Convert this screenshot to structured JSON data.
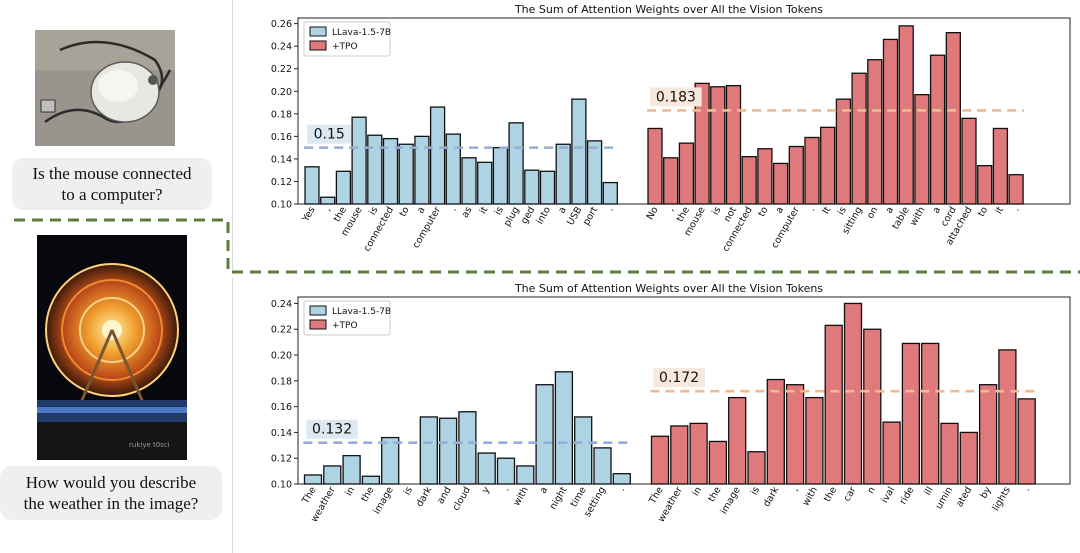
{
  "colors": {
    "baseline": "#aed3e3",
    "tpo": "#e0797c",
    "baseline_line": "#96add6",
    "tpo_line": "#edbb92",
    "badge_blue": "#dde8f3",
    "badge_orange": "#f9e8dc",
    "dashed_frame": "#5e7b3c"
  },
  "questions": {
    "top": [
      "Is the mouse connected",
      "to a computer?"
    ],
    "bottom": [
      "How would you describe",
      "the weather in the image?"
    ]
  },
  "images": {
    "bottom_caption": "rukiye t0sci"
  },
  "chart_data": [
    {
      "type": "bar",
      "title": "The Sum of Attention Weights over All the Vision Tokens",
      "legend": [
        "LLava-1.5-7B",
        "+TPO"
      ],
      "legend_position": "upper-left",
      "ylim": [
        0.1,
        0.265
      ],
      "yticks": [
        0.1,
        0.12,
        0.14,
        0.16,
        0.18,
        0.2,
        0.22,
        0.24,
        0.26
      ],
      "series": [
        {
          "name": "LLava-1.5-7B",
          "categories": [
            "Yes",
            ",",
            "the",
            "mouse",
            "is",
            "connected",
            "to",
            "a",
            "computer",
            ".",
            "as",
            "it",
            "is",
            "plug",
            "ged",
            "into",
            "a",
            "USB",
            "port",
            "."
          ],
          "values": [
            0.133,
            0.106,
            0.129,
            0.177,
            0.161,
            0.158,
            0.153,
            0.16,
            0.186,
            0.162,
            0.141,
            0.137,
            0.15,
            0.172,
            0.13,
            0.129,
            0.153,
            0.193,
            0.156,
            0.119
          ],
          "mean": 0.15,
          "mean_label": "0.15"
        },
        {
          "name": "+TPO",
          "categories": [
            "No",
            ",",
            "the",
            "mouse",
            "is",
            "not",
            "connected",
            "to",
            "a",
            "computer",
            ".",
            "It",
            "is",
            "sitting",
            "on",
            "a",
            "table",
            "with",
            "a",
            "cord",
            "attached",
            "to",
            "it",
            "."
          ],
          "values": [
            0.167,
            0.141,
            0.154,
            0.207,
            0.204,
            0.205,
            0.142,
            0.149,
            0.136,
            0.151,
            0.159,
            0.168,
            0.193,
            0.216,
            0.228,
            0.246,
            0.258,
            0.197,
            0.232,
            0.252,
            0.176,
            0.134,
            0.167,
            0.126
          ],
          "mean": 0.183,
          "mean_label": "0.183"
        }
      ]
    },
    {
      "type": "bar",
      "title": "The Sum of Attention Weights over All the Vision Tokens",
      "legend": [
        "LLava-1.5-7B",
        "+TPO"
      ],
      "legend_position": "upper-left",
      "ylim": [
        0.1,
        0.245
      ],
      "yticks": [
        0.1,
        0.12,
        0.14,
        0.16,
        0.18,
        0.2,
        0.22,
        0.24
      ],
      "series": [
        {
          "name": "LLava-1.5-7B",
          "categories": [
            "The",
            "weather",
            "in",
            "the",
            "image",
            "is",
            "dark",
            "and",
            "cloud",
            "y",
            ".",
            "with",
            "a",
            "night",
            "time",
            "setting",
            "."
          ],
          "values": [
            0.107,
            0.114,
            0.122,
            0.106,
            0.136,
            0.1,
            0.152,
            0.151,
            0.156,
            0.124,
            0.12,
            0.114,
            0.177,
            0.187,
            0.152,
            0.128,
            0.108
          ],
          "mean": 0.132,
          "mean_label": "0.132"
        },
        {
          "name": "+TPO",
          "categories": [
            "The",
            "weather",
            "in",
            "the",
            "image",
            "is",
            "dark",
            ",",
            "with",
            "the",
            "car",
            "n",
            "ival",
            "ride",
            "ill",
            "umin",
            "ated",
            "by",
            "lights",
            "."
          ],
          "values": [
            0.137,
            0.145,
            0.147,
            0.133,
            0.167,
            0.125,
            0.181,
            0.177,
            0.167,
            0.223,
            0.24,
            0.22,
            0.148,
            0.209,
            0.209,
            0.147,
            0.14,
            0.177,
            0.204,
            0.166
          ],
          "mean": 0.172,
          "mean_label": "0.172"
        }
      ]
    }
  ]
}
